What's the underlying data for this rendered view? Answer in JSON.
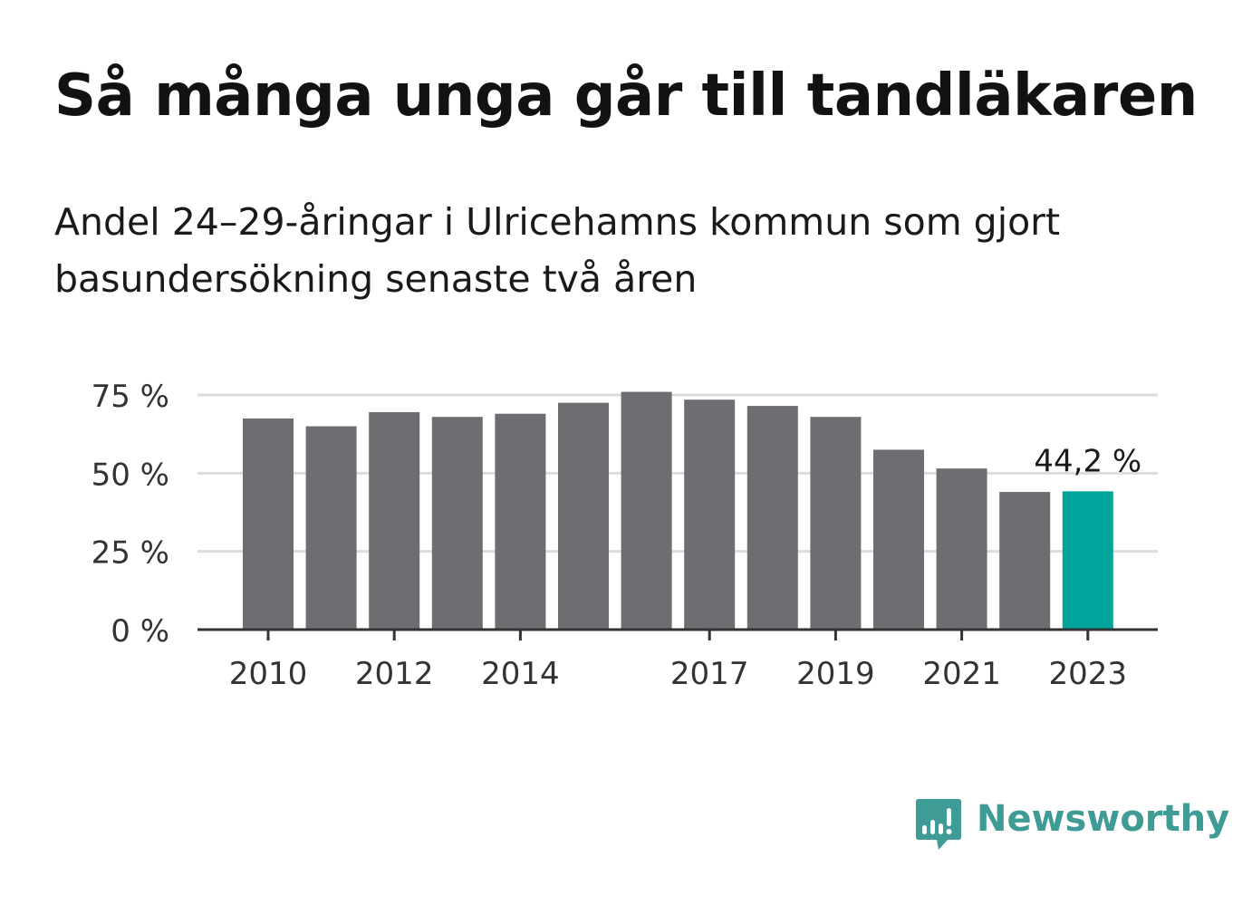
{
  "header": {
    "title": "Så många unga går till tandläkaren",
    "subtitle": "Andel 24–29-åringar i Ulricehamns kommun som gjort basundersökning senaste två åren"
  },
  "chart_data": {
    "type": "bar",
    "categories": [
      "2010",
      "2011",
      "2012",
      "2013",
      "2014",
      "2015",
      "2016",
      "2017",
      "2018",
      "2019",
      "2020",
      "2021",
      "2022",
      "2023"
    ],
    "values": [
      67.5,
      65,
      69.5,
      68,
      69,
      72.5,
      76,
      73.5,
      71.5,
      68,
      57.5,
      51.5,
      44,
      44.2
    ],
    "ylim": [
      0,
      75
    ],
    "yticks": [
      0,
      25,
      50,
      75
    ],
    "ytick_labels": [
      "0 %",
      "25 %",
      "50 %",
      "75 %"
    ],
    "xtick_labels": [
      "2010",
      "2012",
      "2014",
      "2017",
      "2019",
      "2021",
      "2023"
    ],
    "highlight_category": "2023",
    "annotation": "44,2 %",
    "grid": true,
    "colors": {
      "bar": "#6e6d72",
      "highlight": "#00a49b",
      "grid": "#dcdcdc",
      "axis": "#333333"
    }
  },
  "brand": {
    "name": "Newsworthy",
    "icon": "newsworthy-logo-icon",
    "color": "#3f9b96"
  }
}
